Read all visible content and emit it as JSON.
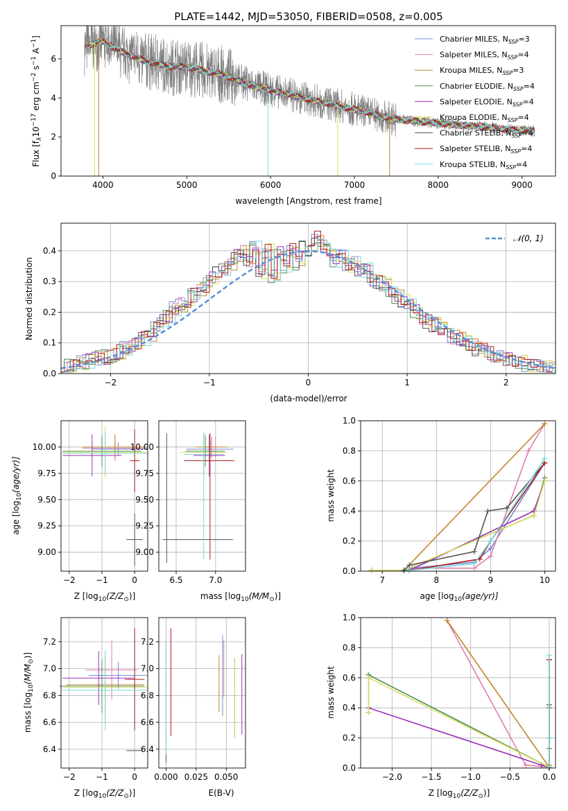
{
  "colors": {
    "Chabrier MILES": "#6f86d6",
    "Salpeter MILES": "#e07db0",
    "Kroupa MILES": "#c0842a",
    "Chabrier ELODIE": "#4f8a4f",
    "Salpeter ELODIE": "#9a2fb5",
    "Kroupa ELODIE": "#d6e05a",
    "Chabrier STELIB": "#555555",
    "Salpeter STELIB": "#b01818",
    "Kroupa STELIB": "#7ad8dc",
    "data_spectrum": "#808080",
    "gaussian": "#5b8fd9"
  },
  "spectrum": {
    "title": "PLATE=1442, MJD=53050, FIBERID=0508, z=0.005",
    "xlabel": "wavelength [Angstrom, rest frame]",
    "ylabel": "Flux [f",
    "ylabel_sub": "λ",
    "ylabel_rest": "10",
    "ylabel_exp1": "−17",
    "ylabel_mid": " erg cm",
    "ylabel_exp2": "−2",
    "ylabel_mid2": " s",
    "ylabel_exp3": "−1",
    "ylabel_mid3": " A",
    "ylabel_exp4": "−1",
    "ylabel_end": "]",
    "xticks": [
      "4000",
      "5000",
      "6000",
      "7000",
      "8000",
      "9000"
    ],
    "yticks": [
      "0",
      "2",
      "4",
      "6"
    ],
    "legend": [
      {
        "model": "Chabrier MILES",
        "n": "3"
      },
      {
        "model": "Salpeter MILES",
        "n": "4"
      },
      {
        "model": "Kroupa MILES",
        "n": "3"
      },
      {
        "model": "Chabrier ELODIE",
        "n": "4"
      },
      {
        "model": "Salpeter ELODIE",
        "n": "4"
      },
      {
        "model": "Kroupa ELODIE",
        "n": "4"
      },
      {
        "model": "Chabrier STELIB",
        "n": "4"
      },
      {
        "model": "Salpeter STELIB",
        "n": "4"
      },
      {
        "model": "Kroupa STELIB",
        "n": "4"
      }
    ],
    "legend_n_label": "N",
    "legend_n_sub": "SSP"
  },
  "chart_data": [
    {
      "type": "line",
      "title": "PLATE=1442, MJD=53050, FIBERID=0508, z=0.005",
      "xlabel": "wavelength [Angstrom, rest frame]",
      "ylabel": "Flux [fλ10^-17 erg cm^-2 s^-1 A^-1]",
      "xlim": [
        3500,
        9400
      ],
      "ylim": [
        0,
        7.7
      ],
      "continuum": {
        "x": [
          3780,
          3900,
          4000,
          4200,
          4500,
          4800,
          5000,
          5300,
          5500,
          5800,
          6000,
          6300,
          6500,
          6800,
          7000,
          7300,
          7500,
          7800,
          8000,
          8300,
          8500,
          8800,
          9000,
          9150
        ],
        "y": [
          6.6,
          6.8,
          6.9,
          6.4,
          5.9,
          5.6,
          5.6,
          5.3,
          5.1,
          4.6,
          4.4,
          4.1,
          3.9,
          3.6,
          3.4,
          3.1,
          2.9,
          2.8,
          2.7,
          2.6,
          2.55,
          2.4,
          2.35,
          2.3
        ]
      },
      "grid": false,
      "legend_position": "upper-right"
    },
    {
      "type": "line",
      "xlabel": "(data-model)/error",
      "ylabel": "Normed distribution",
      "xlim": [
        -2.5,
        2.5
      ],
      "ylim": [
        0,
        0.49
      ],
      "grid": true,
      "legend": "𝒩(0,1)",
      "gaussian": {
        "mu": 0,
        "sigma": 1
      },
      "histogram_bin_width": 0.1,
      "histogram_shape": [
        0.02,
        0.025,
        0.03,
        0.035,
        0.04,
        0.045,
        0.05,
        0.055,
        0.06,
        0.07,
        0.08,
        0.09,
        0.1,
        0.115,
        0.13,
        0.15,
        0.17,
        0.19,
        0.21,
        0.225,
        0.24,
        0.255,
        0.27,
        0.29,
        0.31,
        0.33,
        0.345,
        0.36,
        0.38,
        0.4,
        0.37,
        0.41,
        0.33,
        0.4,
        0.32,
        0.39,
        0.35,
        0.4,
        0.36,
        0.42,
        0.4,
        0.44,
        0.42,
        0.4,
        0.37,
        0.38,
        0.35,
        0.36,
        0.33,
        0.34,
        0.31,
        0.3,
        0.29,
        0.27,
        0.25,
        0.235,
        0.22,
        0.2,
        0.185,
        0.17,
        0.16,
        0.15,
        0.135,
        0.12,
        0.11,
        0.1,
        0.09,
        0.08,
        0.075,
        0.065,
        0.06,
        0.05,
        0.045,
        0.04,
        0.035,
        0.03,
        0.025,
        0.022,
        0.02,
        0.018
      ]
    },
    {
      "type": "scatter",
      "name": "age vs Z",
      "xlabel": "Z [log10(Z/Z⊙)]",
      "ylabel": "age [log10(age/yr)]",
      "xlim": [
        -2.25,
        0.4
      ],
      "ylim": [
        8.82,
        10.25
      ],
      "points": [
        {
          "model": "Chabrier MILES",
          "x": -0.5,
          "xerr": 0.8,
          "y": 9.98,
          "yerr": 0.06
        },
        {
          "model": "Salpeter MILES",
          "x": -0.6,
          "xerr": 1.0,
          "y": 9.99,
          "yerr": 0.12
        },
        {
          "model": "Kroupa MILES",
          "x": -0.6,
          "xerr": 1.0,
          "y": 10.0,
          "yerr": 0.12
        },
        {
          "model": "Chabrier ELODIE",
          "x": -1.0,
          "xerr": 1.2,
          "y": 9.96,
          "yerr": 0.15
        },
        {
          "model": "Salpeter ELODIE",
          "x": -1.3,
          "xerr": 0.9,
          "y": 9.92,
          "yerr": 0.2
        },
        {
          "model": "Kroupa ELODIE",
          "x": -0.9,
          "xerr": 1.3,
          "y": 9.95,
          "yerr": 0.25
        },
        {
          "model": "Chabrier STELIB",
          "x": 0.0,
          "xerr": 0.25,
          "y": 9.12,
          "yerr": 0.25
        },
        {
          "model": "Salpeter STELIB",
          "x": 0.0,
          "xerr": 0.15,
          "y": 9.87,
          "yerr": 0.3
        },
        {
          "model": "Kroupa STELIB",
          "x": -0.9,
          "xerr": 1.3,
          "y": 9.94,
          "yerr": 0.2
        }
      ]
    },
    {
      "type": "scatter",
      "name": "age vs mass",
      "xlabel": "mass [log10(M/M⊙)]",
      "ylabel": "",
      "xlim": [
        6.28,
        7.38
      ],
      "ylim": [
        8.82,
        10.25
      ],
      "points": [
        {
          "model": "Chabrier MILES",
          "x": 6.93,
          "xerr": 0.3,
          "y": 9.98,
          "yerr": 0.06
        },
        {
          "model": "Salpeter MILES",
          "x": 7.0,
          "xerr": 0.1,
          "y": 10.0,
          "yerr": 0.1
        },
        {
          "model": "Kroupa MILES",
          "x": 6.95,
          "xerr": 0.2,
          "y": 10.0,
          "yerr": 0.1
        },
        {
          "model": "Chabrier ELODIE",
          "x": 6.87,
          "xerr": 0.25,
          "y": 9.96,
          "yerr": 0.15
        },
        {
          "model": "Salpeter ELODIE",
          "x": 6.92,
          "xerr": 0.2,
          "y": 9.92,
          "yerr": 0.2
        },
        {
          "model": "Kroupa ELODIE",
          "x": 6.85,
          "xerr": 0.3,
          "y": 9.95,
          "yerr": 0.2
        },
        {
          "model": "Chabrier STELIB",
          "x": 6.38,
          "xerr": 0.0,
          "y": 9.12,
          "yerr": 0.0
        },
        {
          "model": "Salpeter STELIB",
          "x": 6.93,
          "xerr": 0.0,
          "y": 9.87,
          "yerr": 0.0
        },
        {
          "model": "Kroupa STELIB",
          "x": 6.85,
          "xerr": 0.25,
          "y": 9.93,
          "yerr": 0.2
        }
      ],
      "extra_lines": [
        {
          "model": "Chabrier STELIB",
          "kind": "h",
          "x1": 6.33,
          "x2": 7.22,
          "y": 9.12
        },
        {
          "model": "Chabrier STELIB",
          "kind": "v",
          "x": 6.38,
          "y1": 8.9,
          "y2": 10.13
        },
        {
          "model": "Salpeter STELIB",
          "kind": "h",
          "x1": 6.6,
          "x2": 7.24,
          "y": 9.87
        },
        {
          "model": "Salpeter STELIB",
          "kind": "v",
          "x": 6.93,
          "y1": 8.93,
          "y2": 10.13
        },
        {
          "model": "Kroupa STELIB",
          "kind": "v",
          "x": 6.85,
          "y1": 8.93,
          "y2": 10.13
        }
      ]
    },
    {
      "type": "line",
      "name": "mass weight vs age",
      "xlabel": "age  [log10(age/yr)]",
      "ylabel": "mass weight",
      "xlim": [
        6.6,
        10.2
      ],
      "ylim": [
        0,
        1
      ],
      "series": [
        {
          "model": "Chabrier MILES",
          "x": [
            6.8,
            7.4,
            7.55,
            8.7,
            9.0,
            10.0
          ],
          "y": [
            0.005,
            0.005,
            0.02,
            0.06,
            0.15,
            0.72
          ]
        },
        {
          "model": "Salpeter MILES",
          "x": [
            6.8,
            7.5,
            7.6,
            8.7,
            9.0,
            9.7,
            10.0
          ],
          "y": [
            0.005,
            0.005,
            0.02,
            0.02,
            0.1,
            0.8,
            0.98
          ]
        },
        {
          "model": "Kroupa MILES",
          "x": [
            6.8,
            7.4,
            10.0
          ],
          "y": [
            0.005,
            0.005,
            0.98
          ]
        },
        {
          "model": "Chabrier ELODIE",
          "x": [
            6.8,
            7.4,
            9.8,
            10.0
          ],
          "y": [
            0.005,
            0.005,
            0.37,
            0.62
          ]
        },
        {
          "model": "Salpeter ELODIE",
          "x": [
            6.8,
            7.5,
            9.8,
            10.0
          ],
          "y": [
            0.005,
            0.005,
            0.4,
            0.6
          ]
        },
        {
          "model": "Kroupa ELODIE",
          "x": [
            6.8,
            7.4,
            9.8,
            10.0
          ],
          "y": [
            0.005,
            0.005,
            0.37,
            0.6
          ]
        },
        {
          "model": "Chabrier STELIB",
          "x": [
            7.4,
            7.5,
            8.7,
            8.95,
            9.3,
            10.0
          ],
          "y": [
            0.005,
            0.04,
            0.13,
            0.4,
            0.42,
            0.72
          ]
        },
        {
          "model": "Salpeter STELIB",
          "x": [
            7.5,
            8.8,
            9.0,
            10.0
          ],
          "y": [
            0.005,
            0.08,
            0.2,
            0.72
          ]
        },
        {
          "model": "Kroupa STELIB",
          "x": [
            7.5,
            8.7,
            9.0,
            10.0
          ],
          "y": [
            0.005,
            0.05,
            0.2,
            0.75
          ]
        }
      ]
    },
    {
      "type": "scatter",
      "name": "mass vs Z",
      "xlabel": "Z [log10(Z/Z⊙)]",
      "ylabel": "mass [log10(M/M⊙)]",
      "xlim": [
        -2.25,
        0.4
      ],
      "ylim": [
        6.26,
        7.38
      ],
      "points": [
        {
          "model": "Chabrier MILES",
          "x": -0.5,
          "xerr": 0.9,
          "y": 6.95,
          "yerr": 0.1
        },
        {
          "model": "Salpeter MILES",
          "x": -0.7,
          "xerr": 0.8,
          "y": 6.99,
          "yerr": 0.22
        },
        {
          "model": "Kroupa MILES",
          "x": -0.9,
          "xerr": 1.2,
          "y": 6.88,
          "yerr": 0.2
        },
        {
          "model": "Chabrier ELODIE",
          "x": -1.0,
          "xerr": 1.3,
          "y": 6.87,
          "yerr": 0.2
        },
        {
          "model": "Salpeter ELODIE",
          "x": -1.1,
          "xerr": 1.1,
          "y": 6.93,
          "yerr": 0.2
        },
        {
          "model": "Kroupa ELODIE",
          "x": -0.9,
          "xerr": 1.3,
          "y": 6.86,
          "yerr": 0.25
        },
        {
          "model": "Chabrier STELIB",
          "x": 0.0,
          "xerr": 0.25,
          "y": 6.39,
          "yerr": 0.0
        },
        {
          "model": "Salpeter STELIB",
          "x": 0.0,
          "xerr": 0.3,
          "y": 6.92,
          "yerr": 0.38
        },
        {
          "model": "Kroupa STELIB",
          "x": -0.9,
          "xerr": 1.3,
          "y": 6.84,
          "yerr": 0.3
        }
      ]
    },
    {
      "type": "scatter",
      "name": "mass vs E(B-V)",
      "xlabel": "E(B-V)",
      "ylabel": "",
      "xlim": [
        -0.006,
        0.066
      ],
      "ylim": [
        6.26,
        7.38
      ],
      "points": [
        {
          "model": "Chabrier MILES",
          "x": 0.047,
          "yerr": 0.3,
          "y": 6.95
        },
        {
          "model": "Salpeter MILES",
          "x": 0.048,
          "yerr": 0.21,
          "y": 7.0
        },
        {
          "model": "Kroupa MILES",
          "x": 0.044,
          "yerr": 0.21,
          "y": 6.89
        },
        {
          "model": "Chabrier ELODIE",
          "x": 0.057,
          "yerr": 0.3,
          "y": 6.78
        },
        {
          "model": "Salpeter ELODIE",
          "x": 0.063,
          "yerr": 0.3,
          "y": 6.81
        },
        {
          "model": "Kroupa ELODIE",
          "x": 0.057,
          "yerr": 0.3,
          "y": 6.78
        },
        {
          "model": "Chabrier STELIB",
          "x": 0.0,
          "yerr": 0.45,
          "y": 6.75
        },
        {
          "model": "Salpeter STELIB",
          "x": 0.004,
          "yerr": 0.4,
          "y": 6.9
        },
        {
          "model": "Kroupa STELIB",
          "x": 0.0,
          "yerr": 0.42,
          "y": 6.78
        }
      ]
    },
    {
      "type": "line",
      "name": "mass weight vs Z",
      "xlabel": "Z [log10(Z/Z⊙)]",
      "ylabel": "mass weight",
      "xlim": [
        -2.4,
        0.08
      ],
      "ylim": [
        0,
        1
      ],
      "series": [
        {
          "model": "Chabrier MILES",
          "x": [
            0.0,
            0.0,
            0.0
          ],
          "y": [
            0.005,
            0.02,
            0.72
          ]
        },
        {
          "model": "Salpeter MILES",
          "x": [
            -1.3,
            -0.3,
            0.0,
            0.0
          ],
          "y": [
            0.98,
            0.02,
            0.005,
            0.2
          ]
        },
        {
          "model": "Kroupa MILES",
          "x": [
            -1.3,
            0.0,
            0.0
          ],
          "y": [
            0.98,
            0.005,
            0.02
          ]
        },
        {
          "model": "Chabrier ELODIE",
          "x": [
            -2.3,
            -2.3,
            0.0
          ],
          "y": [
            0.37,
            0.62,
            0.005
          ]
        },
        {
          "model": "Salpeter ELODIE",
          "x": [
            -2.3,
            -2.3,
            -0.1,
            0.0
          ],
          "y": [
            0.6,
            0.4,
            0.02,
            0.005
          ]
        },
        {
          "model": "Kroupa ELODIE",
          "x": [
            -2.3,
            -2.3,
            0.0
          ],
          "y": [
            0.37,
            0.6,
            0.005
          ]
        },
        {
          "model": "Chabrier STELIB",
          "x": [
            0.0,
            0.0,
            0.0,
            0.0
          ],
          "y": [
            0.005,
            0.13,
            0.4,
            0.42
          ]
        },
        {
          "model": "Salpeter STELIB",
          "x": [
            0.0,
            0.0,
            0.0
          ],
          "y": [
            0.005,
            0.2,
            0.72
          ]
        },
        {
          "model": "Kroupa STELIB",
          "x": [
            0.0,
            0.0,
            0.0
          ],
          "y": [
            0.005,
            0.2,
            0.75
          ]
        }
      ]
    }
  ],
  "hist_panel": {
    "xlabel": "(data-model)/error",
    "ylabel": "Normed distribution",
    "xticks": [
      "−2",
      "−1",
      "0",
      "1",
      "2"
    ],
    "yticks": [
      "0.0",
      "0.1",
      "0.2",
      "0.3",
      "0.4"
    ],
    "legend_label": "𝒩(0, 1)"
  },
  "small_panels": {
    "age_ylabel": "age  [log",
    "age_ylabel_sub": "10",
    "age_ylabel_end": "(age/yr)]",
    "age_yticks": [
      "9.00",
      "9.25",
      "9.50",
      "9.75",
      "10.00"
    ],
    "z_xlabel": "Z [log",
    "z_xlabel_sub": "10",
    "z_xlabel_end": "(Z/Z",
    "z_xlabel_sun": "⊙",
    "z_xlabel_close": ")]",
    "z_xticks": [
      "−2",
      "−1",
      "0"
    ],
    "mass_xlabel": "mass [log",
    "mass_xlabel_sub": "10",
    "mass_xlabel_end": "(M/M",
    "mass_xlabel_sun": "⊙",
    "mass_xlabel_close": ")]",
    "mass_xticks": [
      "6.5",
      "7.0"
    ],
    "mass_ylabel": "mass [log",
    "mass_ylabel_sub": "10",
    "mass_ylabel_end": "(M/M",
    "mass_ylabel_sun": "⊙",
    "mass_ylabel_close": ")]",
    "mass_yticks": [
      "6.4",
      "6.6",
      "6.8",
      "7.0",
      "7.2"
    ],
    "ebv_xlabel": "E(B-V)",
    "ebv_xticks": [
      "0.000",
      "0.025",
      "0.050"
    ]
  },
  "weight_panels": {
    "ylabel": "mass weight",
    "yticks": [
      "0.0",
      "0.2",
      "0.4",
      "0.6",
      "0.8",
      "1.0"
    ],
    "age_xlabel": "age  [log",
    "age_xlabel_sub": "10",
    "age_xlabel_end": "(age/yr)]",
    "age_xticks": [
      "7",
      "8",
      "9",
      "10"
    ],
    "z_xlabel": "Z [log",
    "z_xlabel_sub": "10",
    "z_xlabel_end": "(Z/Z",
    "z_xlabel_sun": "⊙",
    "z_xlabel_close": ")]",
    "z_xticks": [
      "−2.0",
      "−1.5",
      "−1.0",
      "−0.5",
      "0.0"
    ]
  }
}
